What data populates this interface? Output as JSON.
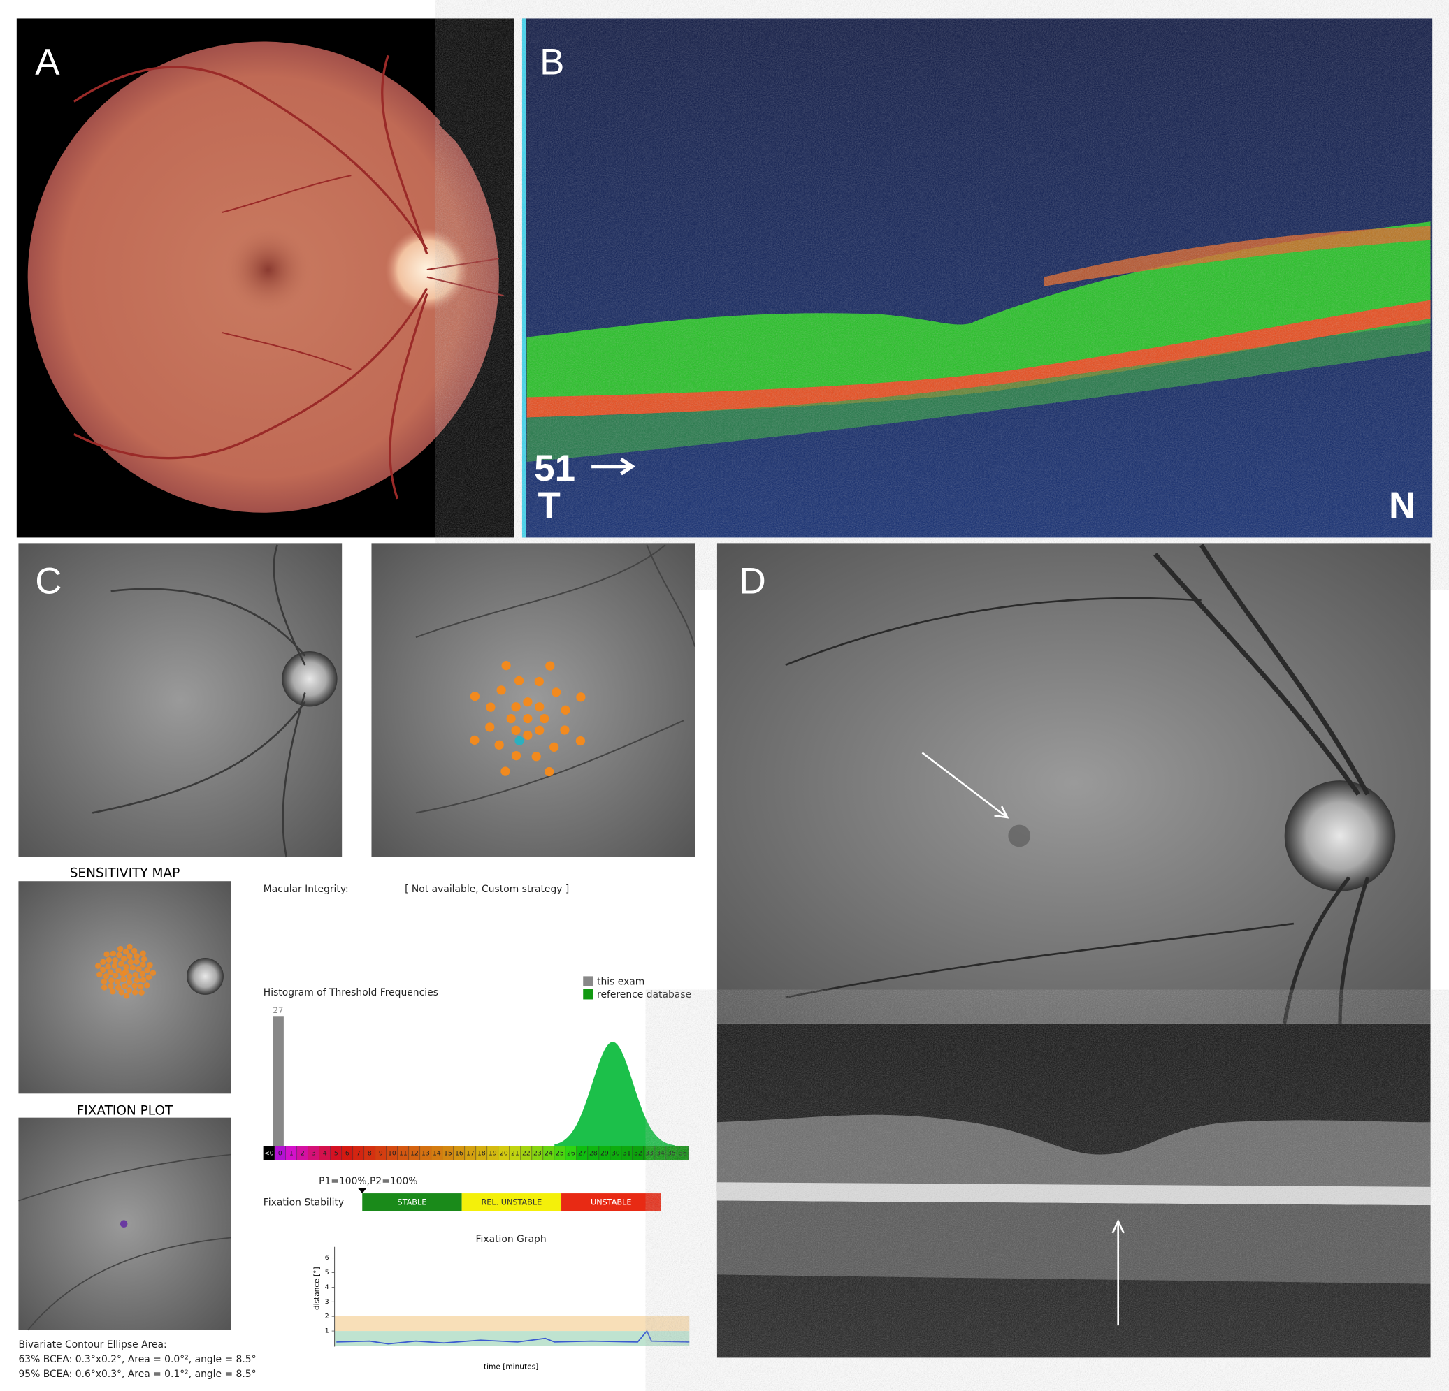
{
  "panel_labels": [
    "A",
    "B",
    "C",
    "D"
  ],
  "oct_b": {
    "scan_number": "51",
    "left": "T",
    "right": "N"
  },
  "microperimetry": {
    "sensitivity_map_title": "SENSITIVITY MAP",
    "fixation_plot_title": "FIXATION PLOT",
    "bcea": {
      "title": "Bivariate Contour Ellipse Area:",
      "lines": [
        "63% BCEA: 0.3°x0.2°, Area = 0.0°², angle = 8.5°",
        "95% BCEA: 0.6°x0.3°, Area = 0.1°², angle = 8.5°"
      ]
    },
    "macular_integrity": {
      "label": "Macular Integrity:",
      "value": "[ Not available, Custom strategy ]"
    },
    "histogram": {
      "title": "Histogram of Threshold Frequencies",
      "legend": [
        "this exam",
        "reference database"
      ],
      "bar_label": "27",
      "scale": [
        "<0",
        "0",
        "1",
        "2",
        "3",
        "4",
        "5",
        "6",
        "7",
        "8",
        "9",
        "10",
        "11",
        "12",
        "13",
        "14",
        "15",
        "16",
        "17",
        "18",
        "19",
        "20",
        "21",
        "22",
        "23",
        "24",
        "25",
        "26",
        "27",
        "28",
        "29",
        "30",
        "31",
        "32",
        "33",
        "34",
        "35",
        "36"
      ]
    },
    "fixation_stability": {
      "p_values": "P1=100%,P2=100%",
      "label": "Fixation Stability",
      "categories": [
        "STABLE",
        "REL. UNSTABLE",
        "UNSTABLE"
      ]
    },
    "fixation_graph": {
      "title": "Fixation Graph",
      "y_label": "distance [°]",
      "y_ticks": [
        "1",
        "2",
        "3",
        "4",
        "5",
        "6"
      ],
      "x_label": "time [minutes]"
    }
  }
}
